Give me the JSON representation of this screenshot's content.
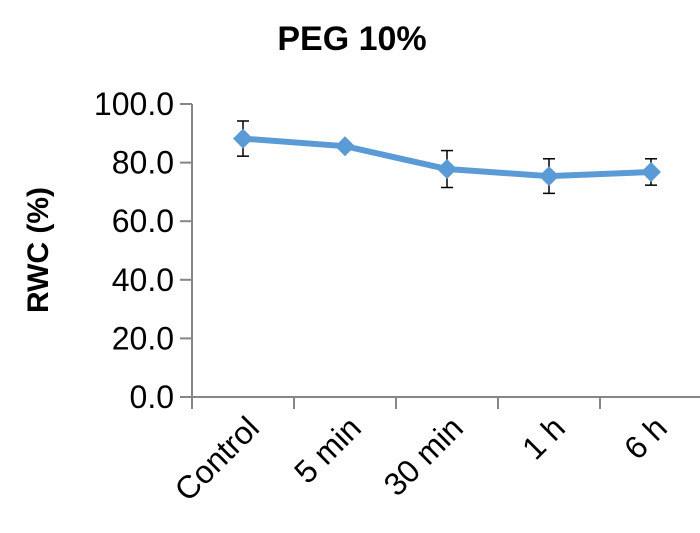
{
  "chart_data": {
    "type": "line",
    "title": "PEG 10%",
    "xlabel": "",
    "ylabel": "RWC (%)",
    "categories": [
      "Control",
      "5 min",
      "30 min",
      "1 h",
      "6 h"
    ],
    "ylim": [
      0,
      100
    ],
    "yticks": [
      "0.0",
      "20.0",
      "40.0",
      "60.0",
      "80.0",
      "100.0"
    ],
    "grid": false,
    "legend": "none",
    "series": [
      {
        "values": [
          88.2,
          85.6,
          77.8,
          75.4,
          76.8
        ],
        "error": [
          6.0,
          0.0,
          6.3,
          5.9,
          4.5
        ],
        "color": "#5B9BD5",
        "marker": "diamond"
      }
    ]
  }
}
